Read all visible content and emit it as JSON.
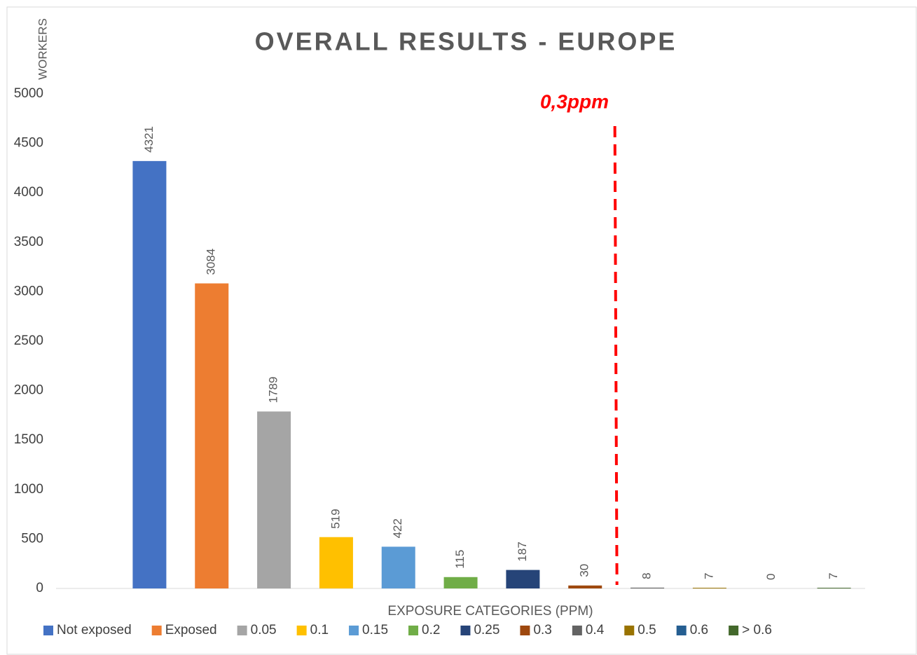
{
  "chart_data": {
    "type": "bar",
    "title": "OVERALL RESULTS - EUROPE",
    "y_label": "WORKERS",
    "x_label": "EXPOSURE CATEGORIES (PPM)",
    "annotation": "0,3ppm",
    "categories": [
      "Not exposed",
      "Exposed",
      "0.05",
      "0.1",
      "0.15",
      "0.2",
      "0.25",
      "0.3",
      "0.4",
      "0.5",
      "0.6",
      "> 0.6"
    ],
    "values": [
      4321,
      3084,
      1789,
      519,
      422,
      115,
      187,
      30,
      8,
      7,
      0,
      7
    ],
    "colors": [
      "#4472c4",
      "#ed7d31",
      "#a5a5a5",
      "#ffc000",
      "#5b9bd5",
      "#70ad47",
      "#264478",
      "#9e480e",
      "#636363",
      "#997300",
      "#255e91",
      "#43682b"
    ],
    "ylim": [
      0,
      5000
    ],
    "yticks": [
      0,
      500,
      1000,
      1500,
      2000,
      2500,
      3000,
      3500,
      4000,
      4500,
      5000
    ],
    "grid": false,
    "legend": "bottom"
  }
}
